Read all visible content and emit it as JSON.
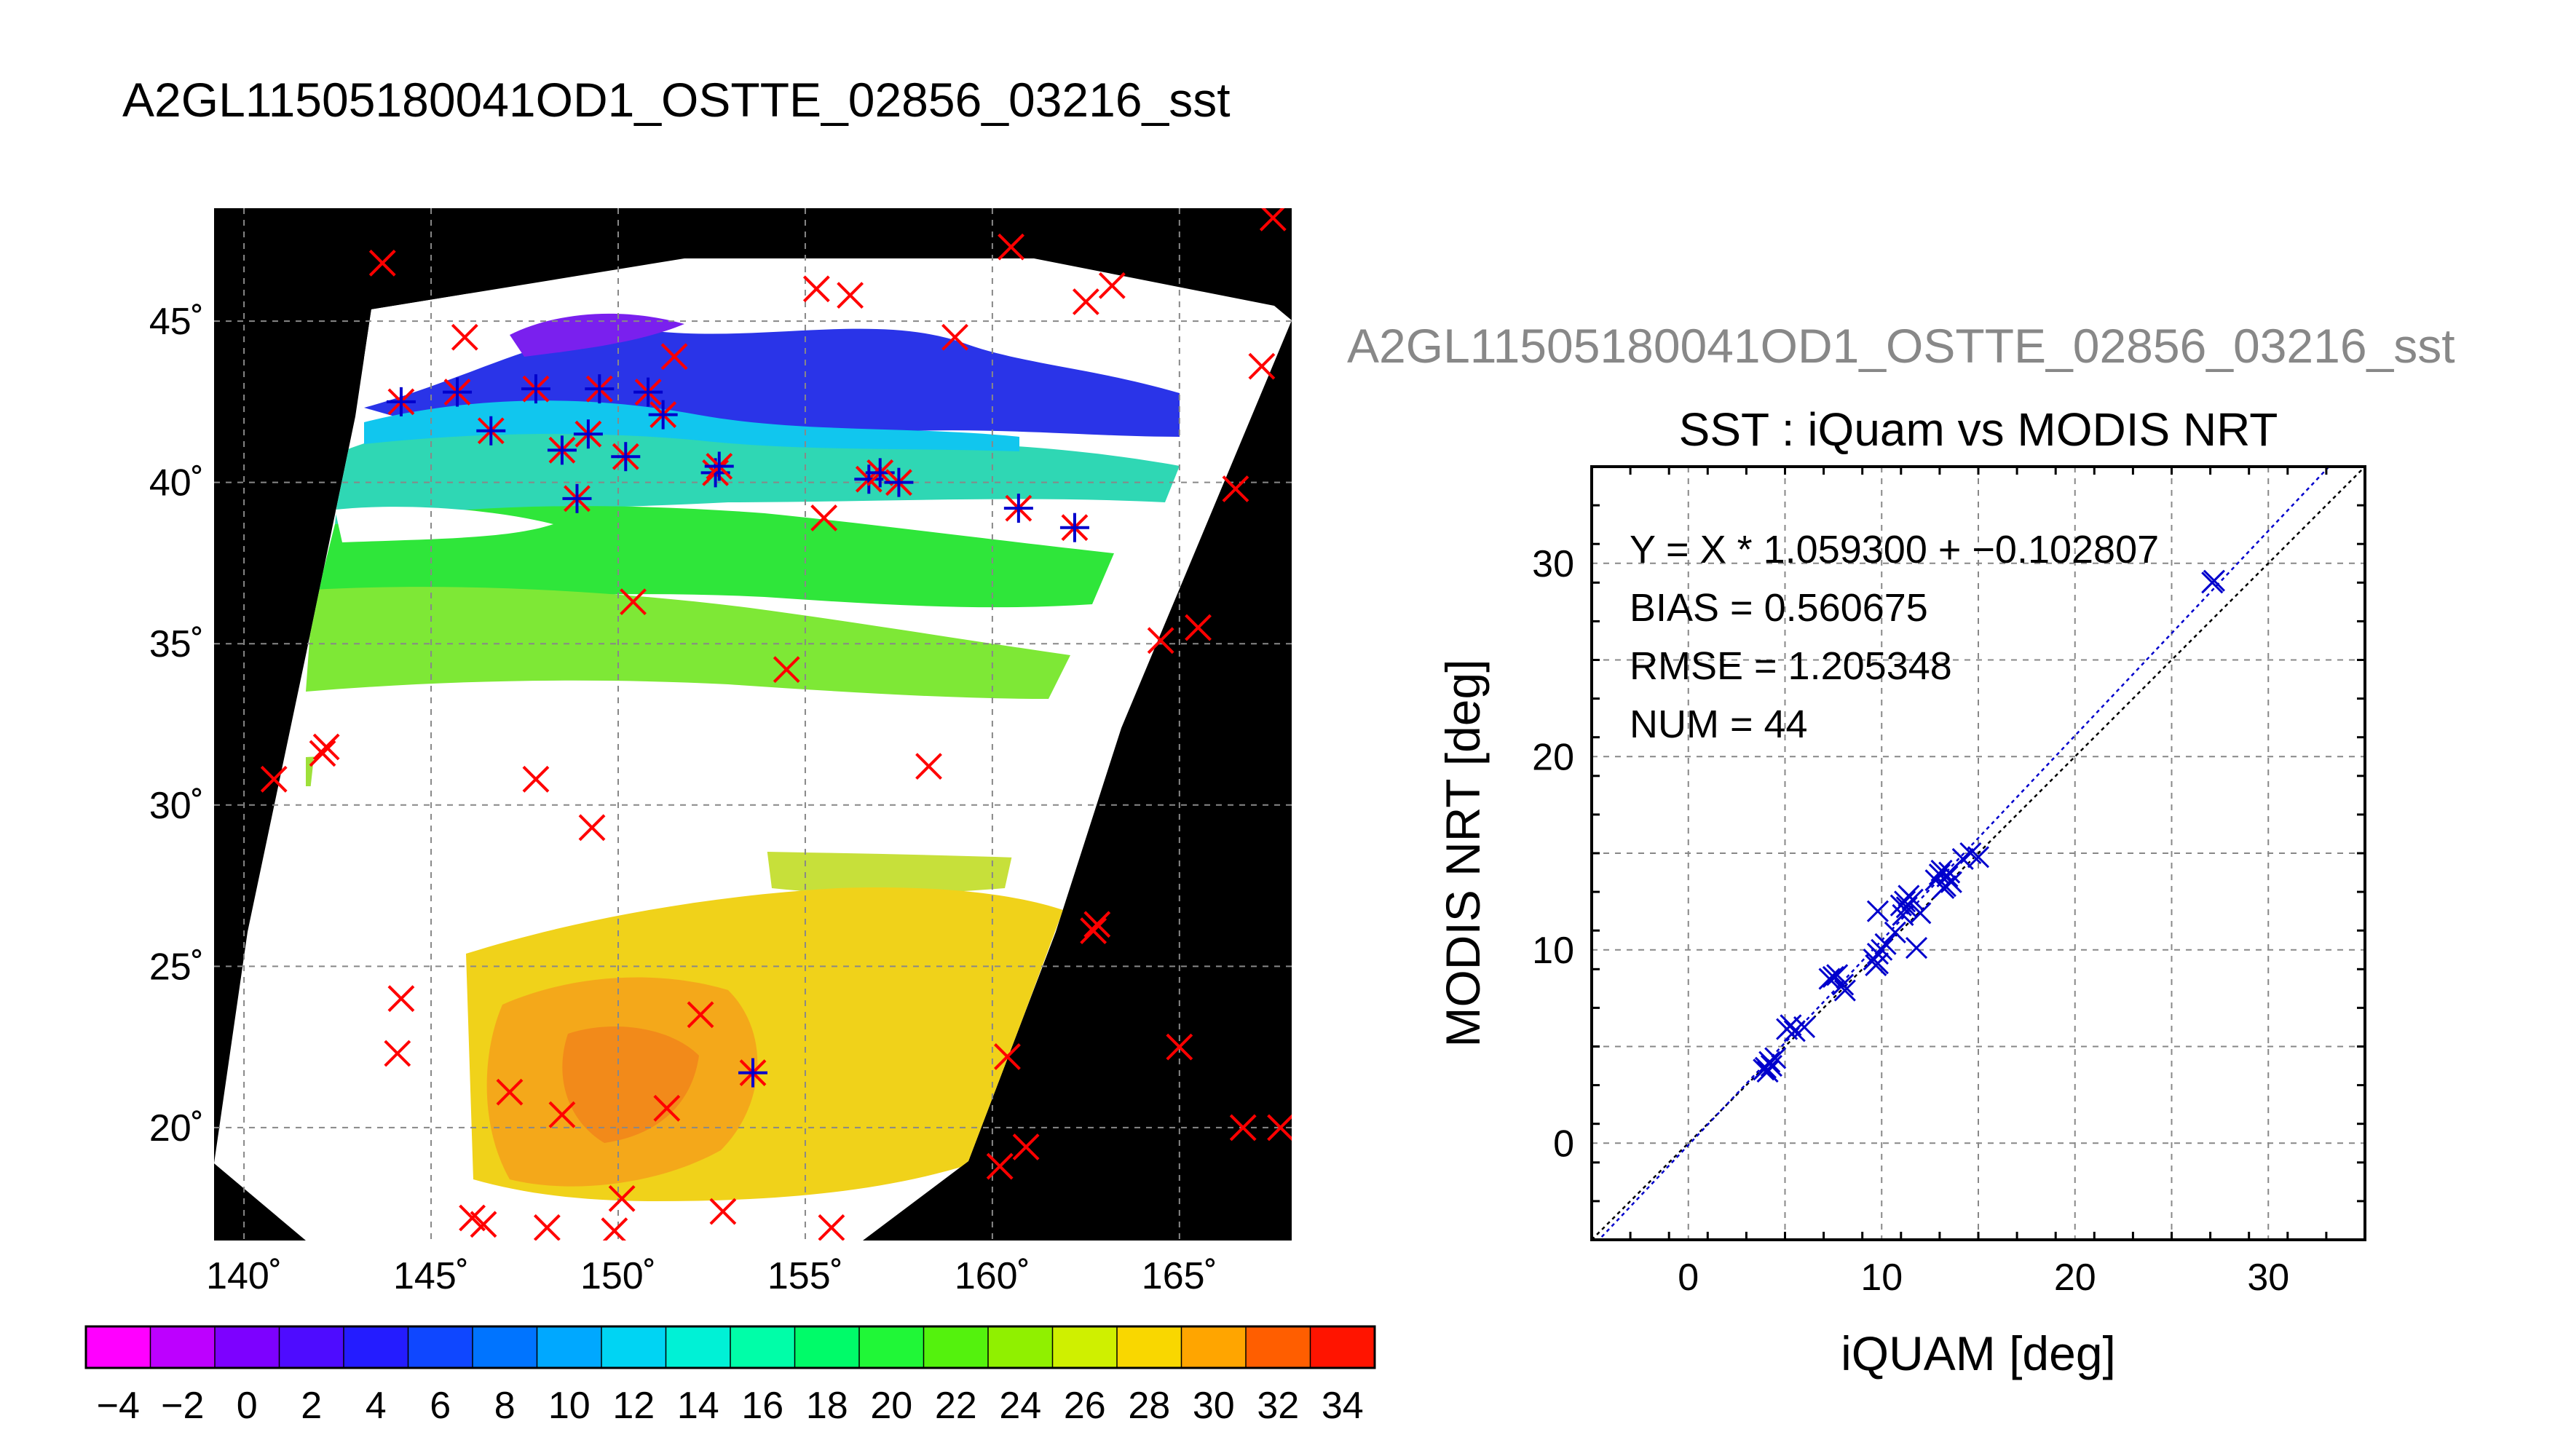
{
  "page_title": "A2GL11505180041OD1_OSTTE_02856_03216_sst",
  "map": {
    "lon_range": [
      139.2,
      168.0
    ],
    "lat_range": [
      16.5,
      48.5
    ],
    "lon_ticks": [
      140,
      145,
      150,
      155,
      160,
      165
    ],
    "lat_ticks": [
      20,
      25,
      30,
      35,
      40,
      45
    ],
    "lon_tick_labels": [
      "140˚",
      "145˚",
      "150˚",
      "155˚",
      "160˚",
      "165˚"
    ],
    "lat_tick_labels": [
      "20˚",
      "25˚",
      "30˚",
      "35˚",
      "40˚",
      "45˚"
    ],
    "grid": true,
    "colors": {
      "no_data": "#000000",
      "cloud": "#ffffff",
      "grid": "#888888",
      "match_marker": "#ff0000",
      "used_marker": "#0000cc"
    },
    "match_points": [
      [
        143.7,
        46.8
      ],
      [
        160.5,
        47.3
      ],
      [
        156.2,
        45.8
      ],
      [
        155.3,
        46.0
      ],
      [
        163.2,
        46.1
      ],
      [
        162.5,
        45.6
      ],
      [
        167.5,
        48.2
      ],
      [
        167.2,
        43.6
      ],
      [
        145.9,
        44.5
      ],
      [
        151.5,
        43.9
      ],
      [
        159.0,
        44.5
      ],
      [
        166.5,
        39.8
      ],
      [
        155.5,
        38.9
      ],
      [
        150.4,
        36.3
      ],
      [
        165.5,
        35.5
      ],
      [
        164.5,
        35.1
      ],
      [
        154.5,
        34.2
      ],
      [
        158.3,
        31.2
      ],
      [
        147.8,
        30.8
      ],
      [
        142.2,
        31.8
      ],
      [
        142.1,
        31.6
      ],
      [
        140.8,
        30.8
      ],
      [
        149.3,
        29.3
      ],
      [
        162.8,
        26.3
      ],
      [
        162.7,
        26.1
      ],
      [
        144.2,
        24.0
      ],
      [
        144.1,
        22.3
      ],
      [
        152.2,
        23.5
      ],
      [
        165.0,
        22.5
      ],
      [
        160.4,
        22.2
      ],
      [
        147.1,
        21.1
      ],
      [
        148.5,
        20.4
      ],
      [
        151.3,
        20.6
      ],
      [
        166.7,
        20.0
      ],
      [
        167.7,
        20.0
      ],
      [
        160.9,
        19.4
      ],
      [
        160.2,
        18.8
      ],
      [
        150.1,
        17.8
      ],
      [
        152.8,
        17.4
      ],
      [
        146.1,
        17.2
      ],
      [
        146.4,
        17.0
      ],
      [
        148.1,
        16.9
      ],
      [
        149.9,
        16.8
      ],
      [
        155.7,
        16.9
      ]
    ],
    "used_points": [
      [
        144.2,
        42.5
      ],
      [
        145.7,
        42.8
      ],
      [
        146.6,
        41.6
      ],
      [
        147.8,
        42.9
      ],
      [
        148.5,
        41.0
      ],
      [
        149.2,
        41.5
      ],
      [
        149.5,
        42.9
      ],
      [
        148.9,
        39.5
      ],
      [
        150.2,
        40.8
      ],
      [
        150.8,
        42.8
      ],
      [
        151.2,
        42.1
      ],
      [
        152.6,
        40.3
      ],
      [
        152.7,
        40.5
      ],
      [
        156.7,
        40.1
      ],
      [
        157.0,
        40.3
      ],
      [
        157.5,
        40.0
      ],
      [
        160.7,
        39.2
      ],
      [
        162.2,
        38.6
      ],
      [
        153.6,
        21.7
      ]
    ]
  },
  "colorbar": {
    "min": -5,
    "max": 35,
    "step": 2,
    "tick_values": [
      -4,
      -2,
      0,
      2,
      4,
      6,
      8,
      10,
      12,
      14,
      16,
      18,
      20,
      22,
      24,
      26,
      28,
      30,
      32,
      34
    ],
    "tick_labels": [
      "−4",
      "−2",
      "0",
      "2",
      "4",
      "6",
      "8",
      "10",
      "12",
      "14",
      "16",
      "18",
      "20",
      "22",
      "24",
      "26",
      "28",
      "30",
      "32",
      "34"
    ]
  },
  "scatter_super_title": "A2GL11505180041OD1_OSTTE_02856_03216_sst",
  "chart_data": {
    "type": "scatter",
    "title": "SST : iQuam vs MODIS NRT",
    "xlabel": "iQUAM [deg]",
    "ylabel": "MODIS NRT [deg]",
    "xlim": [
      -5,
      35
    ],
    "ylim": [
      -5,
      35
    ],
    "x_ticks": [
      0,
      10,
      20,
      30
    ],
    "y_ticks": [
      0,
      10,
      20,
      30
    ],
    "grid": true,
    "annotations": [
      "Y = X * 1.059300 + −0.102807",
      "BIAS = 0.560675",
      "RMSE = 1.205348",
      "NUM = 44"
    ],
    "fit": {
      "slope": 1.0593,
      "intercept": -0.102807,
      "color": "#0000cc"
    },
    "identity_line_color": "#000000",
    "marker_color": "#0000cc",
    "points": [
      [
        27.1,
        29.0
      ],
      [
        27.2,
        29.1
      ],
      [
        14.6,
        15.0
      ],
      [
        15.0,
        14.8
      ],
      [
        13.2,
        13.2
      ],
      [
        13.4,
        13.8
      ],
      [
        13.5,
        14.0
      ],
      [
        13.0,
        13.9
      ],
      [
        12.8,
        13.6
      ],
      [
        13.3,
        13.3
      ],
      [
        13.1,
        14.1
      ],
      [
        11.4,
        12.8
      ],
      [
        11.2,
        12.5
      ],
      [
        11.0,
        12.3
      ],
      [
        11.6,
        12.6
      ],
      [
        11.1,
        11.8
      ],
      [
        10.7,
        10.9
      ],
      [
        9.8,
        12.0
      ],
      [
        11.8,
        10.1
      ],
      [
        10.2,
        10.3
      ],
      [
        9.6,
        9.5
      ],
      [
        9.7,
        9.2
      ],
      [
        9.8,
        9.8
      ],
      [
        10.0,
        10.0
      ],
      [
        9.8,
        9.3
      ],
      [
        8.0,
        8.2
      ],
      [
        7.5,
        8.6
      ],
      [
        7.3,
        8.5
      ],
      [
        7.7,
        8.7
      ],
      [
        5.3,
        6.1
      ],
      [
        5.5,
        5.8
      ],
      [
        5.1,
        5.9
      ],
      [
        4.0,
        3.9
      ],
      [
        4.2,
        4.2
      ],
      [
        3.9,
        3.8
      ],
      [
        4.1,
        3.7
      ],
      [
        4.3,
        4.0
      ],
      [
        11.3,
        12.2
      ],
      [
        12.0,
        11.9
      ],
      [
        13.6,
        13.5
      ],
      [
        14.2,
        14.7
      ],
      [
        8.1,
        7.9
      ],
      [
        6.0,
        6.0
      ],
      [
        4.5,
        4.4
      ]
    ]
  }
}
